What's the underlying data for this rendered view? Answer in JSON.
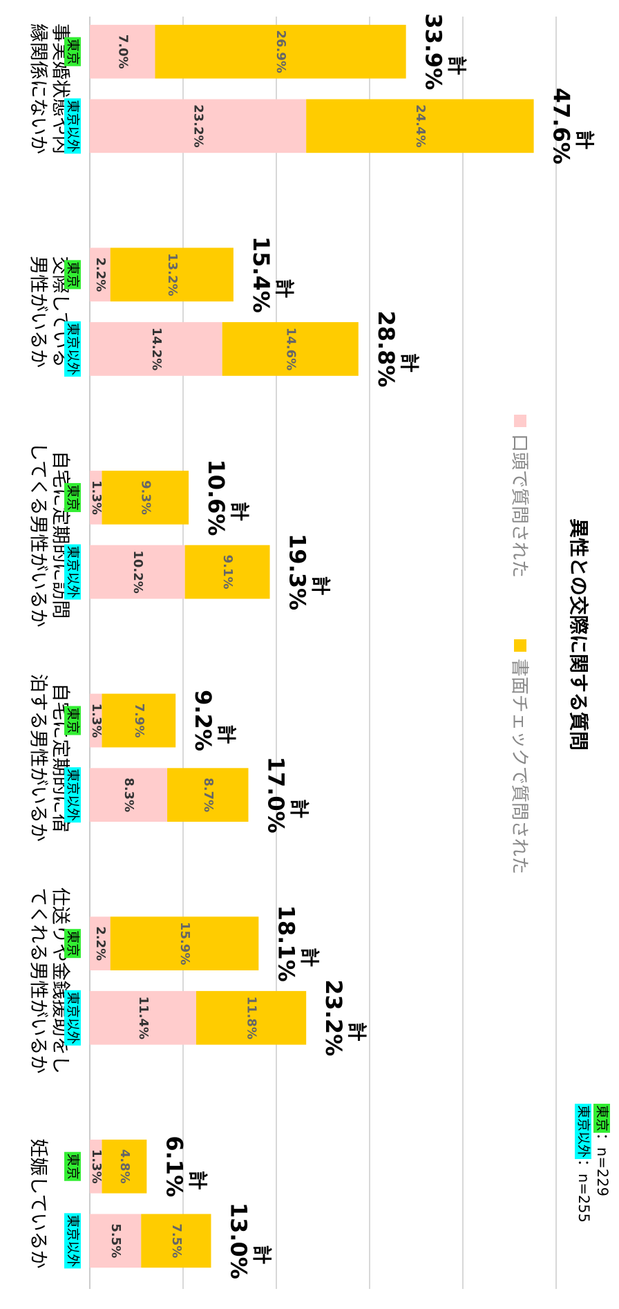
{
  "chart_data": {
    "type": "stacked-bar",
    "title": "異性との交際に関する質問",
    "categories": [
      [
        "事実婚状態や内",
        "縁関係にないか"
      ],
      [
        "交際している",
        "男性がいるか"
      ],
      [
        "自宅に定期的に訪問",
        "してくる男性がいるか"
      ],
      [
        "自宅に定期的に宿",
        "泊する男性がいるか"
      ],
      [
        "仕送りや金銭援助をし",
        "てくれる男性がいるか"
      ],
      [
        "妊娠しているか"
      ]
    ],
    "groups": [
      "東京",
      "東京以外"
    ],
    "group_colors": [
      "#33ee33",
      "#00ffff"
    ],
    "series": [
      {
        "name": "口頭で質問された",
        "color": "#ffcccc",
        "values": [
          [
            7.0,
            23.2
          ],
          [
            2.2,
            14.2
          ],
          [
            1.3,
            10.2
          ],
          [
            1.3,
            8.3
          ],
          [
            2.2,
            11.4
          ],
          [
            1.3,
            5.5
          ]
        ],
        "value_labels": [
          [
            "7.0%",
            "23.2%"
          ],
          [
            "2.2%",
            "14.2%"
          ],
          [
            "1.3%",
            "10.2%"
          ],
          [
            "1.3%",
            "8.3%"
          ],
          [
            "2.2%",
            "11.4%"
          ],
          [
            "1.3%",
            "5.5%"
          ]
        ]
      },
      {
        "name": "書面チェックで質問された",
        "color": "#ffcc00",
        "values": [
          [
            26.9,
            24.4
          ],
          [
            13.2,
            14.6
          ],
          [
            9.3,
            9.1
          ],
          [
            7.9,
            8.7
          ],
          [
            15.9,
            11.8
          ],
          [
            4.8,
            7.5
          ]
        ],
        "value_labels": [
          [
            "26.9%",
            "24.4%"
          ],
          [
            "13.2%",
            "14.6%"
          ],
          [
            "9.3%",
            "9.1%"
          ],
          [
            "7.9%",
            "8.7%"
          ],
          [
            "15.9%",
            "11.8%"
          ],
          [
            "4.8%",
            "7.5%"
          ]
        ]
      }
    ],
    "total_prefix": "計",
    "totals": [
      [
        {
          "value": 33.9,
          "label": "33.9%"
        },
        {
          "value": 47.6,
          "label": "47.6%"
        }
      ],
      [
        {
          "value": 15.4,
          "label": "15.4%"
        },
        {
          "value": 28.8,
          "label": "28.8%"
        }
      ],
      [
        {
          "value": 10.6,
          "label": "10.6%"
        },
        {
          "value": 19.3,
          "label": "19.3%"
        }
      ],
      [
        {
          "value": 9.2,
          "label": "9.2%"
        },
        {
          "value": 17.0,
          "label": "17.0%"
        }
      ],
      [
        {
          "value": 18.1,
          "label": "18.1%"
        },
        {
          "value": 23.2,
          "label": "23.2%"
        }
      ],
      [
        {
          "value": 6.1,
          "label": "6.1%"
        },
        {
          "value": 13.0,
          "label": "13.0%"
        }
      ]
    ],
    "sample_sizes": [
      "：n=229",
      "：n=255"
    ],
    "ylim": [
      0,
      50
    ],
    "yticks": [
      0,
      10,
      20,
      30,
      40,
      50
    ],
    "grid": true
  }
}
